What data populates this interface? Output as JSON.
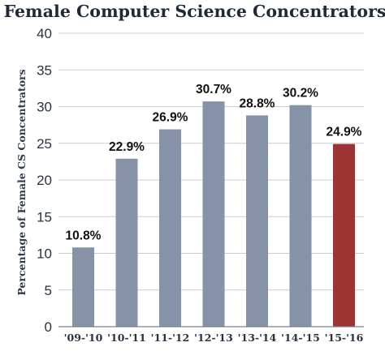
{
  "chart_data": {
    "type": "bar",
    "title": "Female Computer Science Concentrators",
    "ylabel": "Percentage of Female CS Concentrators",
    "xlabel": "",
    "categories": [
      "'09-'10",
      "'10-'11",
      "'11-'12",
      "'12-'13",
      "'13-'14",
      "'14-'15",
      "'15-'16"
    ],
    "values": [
      10.8,
      22.9,
      26.9,
      30.7,
      28.8,
      30.2,
      24.9
    ],
    "data_labels": [
      "10.8%",
      "22.9%",
      "26.9%",
      "30.7%",
      "28.8%",
      "30.2%",
      "24.9%"
    ],
    "ylim": [
      0,
      40
    ],
    "yticks": [
      0,
      5,
      10,
      15,
      20,
      25,
      30,
      35,
      40
    ],
    "grid": true,
    "highlight_index": 6,
    "colors": {
      "bar": "#8592a7",
      "highlight_bar": "#9c3434",
      "highlight_tick": "#9c3434",
      "text": "#2b3340"
    }
  }
}
